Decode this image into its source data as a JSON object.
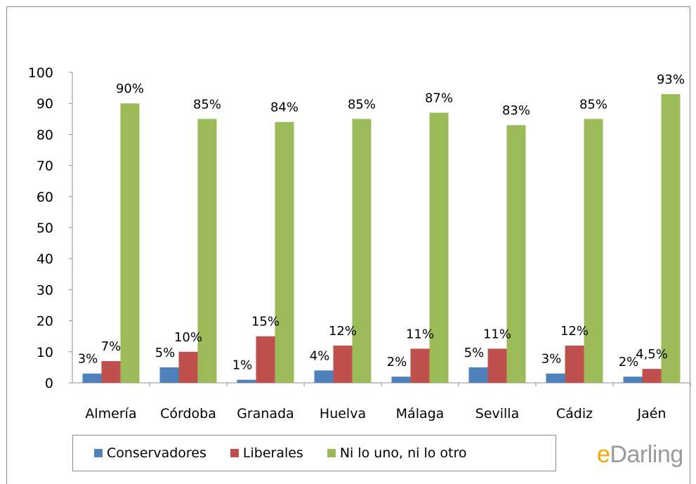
{
  "chart_data": {
    "type": "bar",
    "title": "",
    "xlabel": "",
    "ylabel": "",
    "ylim": [
      0,
      100
    ],
    "yticks": [
      0,
      10,
      20,
      30,
      40,
      50,
      60,
      70,
      80,
      90,
      100
    ],
    "grid": false,
    "legend_position": "bottom",
    "categories": [
      "Almería",
      "Córdoba",
      "Granada",
      "Huelva",
      "Málaga",
      "Sevilla",
      "Cádiz",
      "Jaén"
    ],
    "series": [
      {
        "name": "Conservadores",
        "color": "#4f81bd",
        "values": [
          3,
          5,
          1,
          4,
          2,
          5,
          3,
          2
        ],
        "labels": [
          "3%",
          "5%",
          "1%",
          "4%",
          "2%",
          "5%",
          "3%",
          "2%"
        ]
      },
      {
        "name": "Liberales",
        "color": "#c0504d",
        "values": [
          7,
          10,
          15,
          12,
          11,
          11,
          12,
          4.5
        ],
        "labels": [
          "7%",
          "10%",
          "15%",
          "12%",
          "11%",
          "11%",
          "12%",
          "4,5%"
        ]
      },
      {
        "name": "Ni lo uno, ni lo otro",
        "color": "#9bbb59",
        "values": [
          90,
          85,
          84,
          85,
          87,
          83,
          85,
          93
        ],
        "labels": [
          "90%",
          "85%",
          "84%",
          "85%",
          "87%",
          "83%",
          "85%",
          "93%"
        ]
      }
    ]
  },
  "brand": {
    "prefix": "e",
    "rest": "Darling"
  }
}
